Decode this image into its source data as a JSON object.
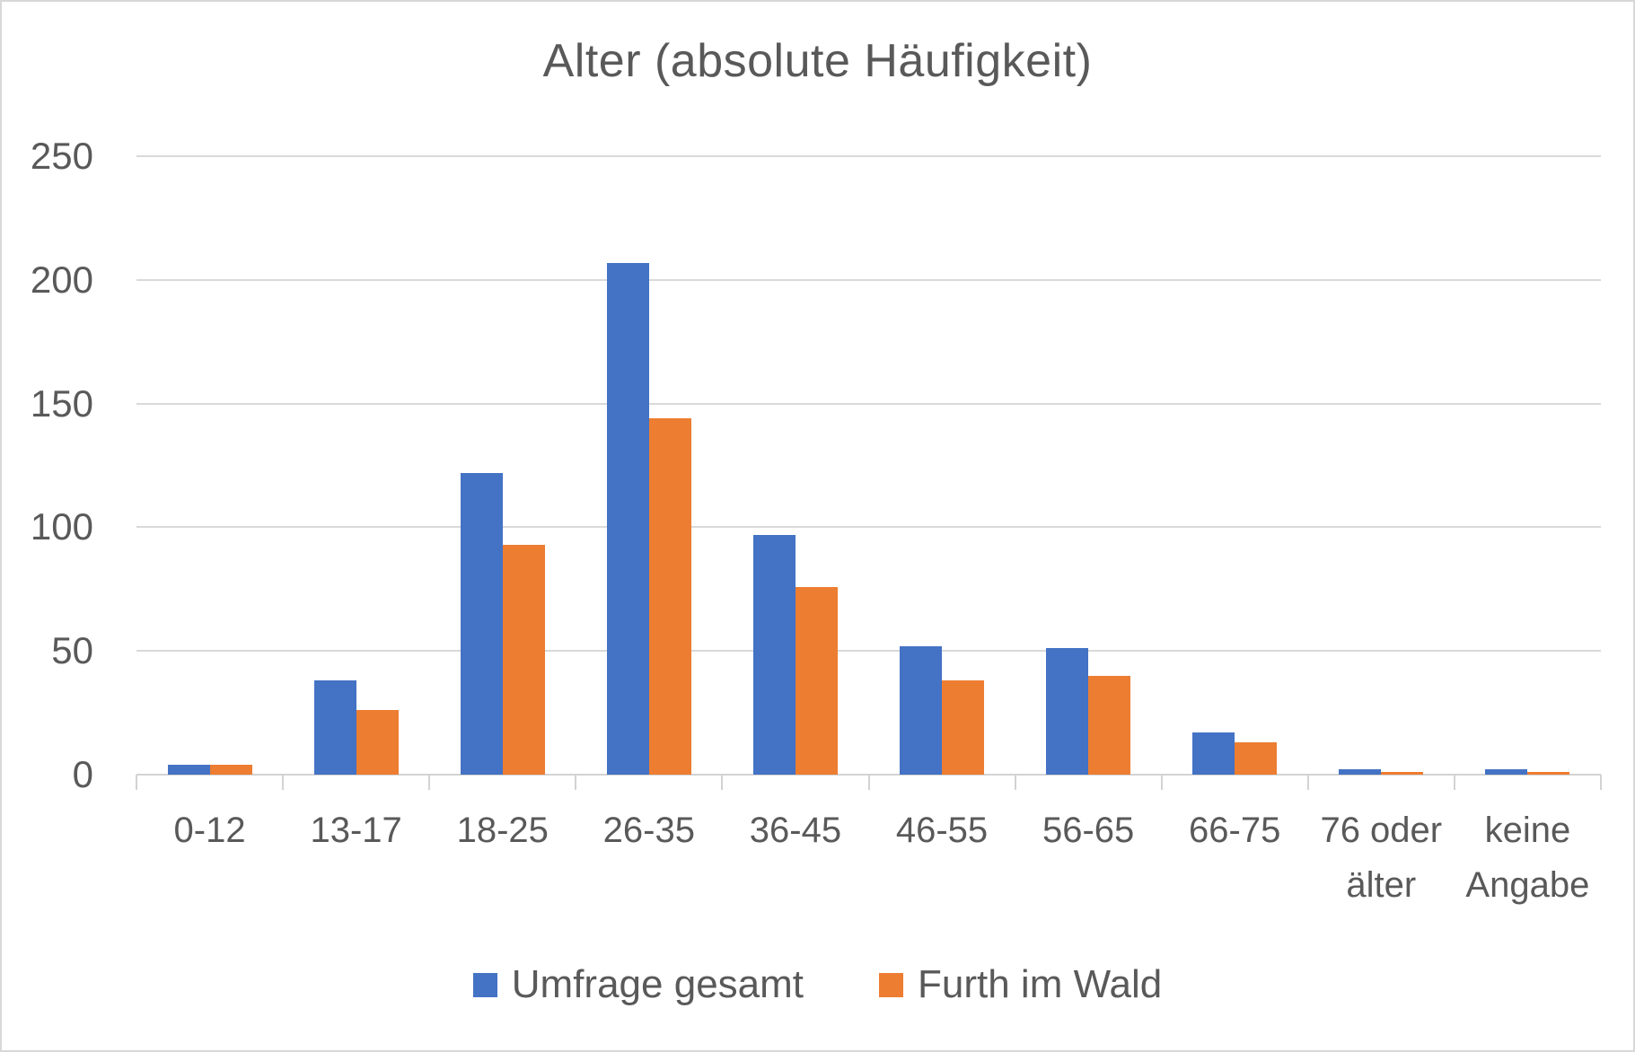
{
  "chart_data": {
    "type": "bar",
    "title": "Alter (absolute Häufigkeit)",
    "categories": [
      "0-12",
      "13-17",
      "18-25",
      "26-35",
      "36-45",
      "46-55",
      "56-65",
      "66-75",
      "76 oder älter",
      "keine Angabe"
    ],
    "series": [
      {
        "name": "Umfrage gesamt",
        "color": "#4472C4",
        "values": [
          4,
          38,
          122,
          207,
          97,
          52,
          51,
          17,
          2,
          2
        ]
      },
      {
        "name": "Furth im Wald",
        "color": "#ED7D31",
        "values": [
          4,
          26,
          93,
          144,
          76,
          38,
          40,
          13,
          1,
          1
        ]
      }
    ],
    "xlabel": "",
    "ylabel": "",
    "ylim": [
      0,
      250
    ],
    "ytick_step": 50,
    "yticks": [
      0,
      50,
      100,
      150,
      200,
      250
    ],
    "grid": true,
    "legend_position": "bottom"
  },
  "colors": {
    "text": "#595959",
    "gridline": "#d9d9d9",
    "axis": "#d3d3d3",
    "background": "#ffffff",
    "frame_border": "#d8d8d8"
  }
}
